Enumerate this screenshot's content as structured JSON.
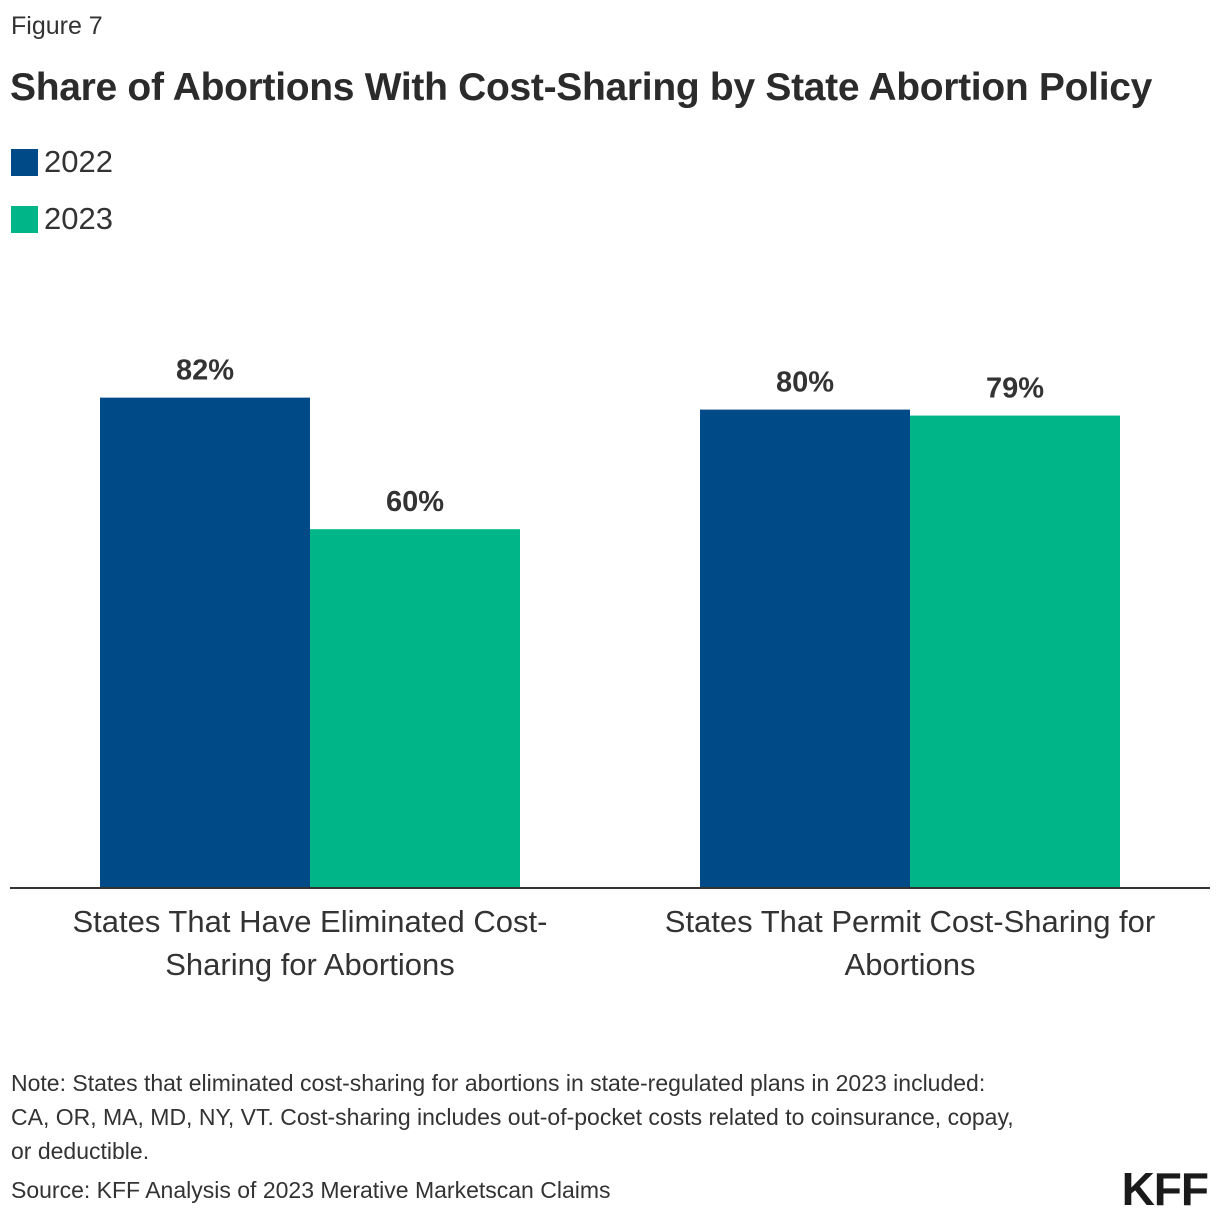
{
  "figure_label": "Figure 7",
  "logo": "KFF",
  "note": "Note: States that eliminated cost-sharing for abortions in state-regulated plans in 2023 included: CA, OR, MA, MD, NY, VT. Cost-sharing includes out-of-pocket costs related to coinsurance, copay, or deductible.",
  "source": "Source: KFF Analysis of 2023 Merative Marketscan Claims",
  "colors": {
    "series_2022": "#004b87",
    "series_2023": "#00b588",
    "axis": "#333333",
    "value_label": "#333333"
  },
  "chart_data": {
    "type": "bar",
    "title": "Share of Abortions With Cost-Sharing by State Abortion Policy",
    "categories": [
      "States That Have Eliminated Cost-Sharing for Abortions",
      "States That Permit Cost-Sharing for Abortions"
    ],
    "series": [
      {
        "name": "2022",
        "values": [
          82,
          80
        ]
      },
      {
        "name": "2023",
        "values": [
          60,
          79
        ]
      }
    ],
    "value_suffix": "%",
    "xlabel": "",
    "ylabel": "",
    "ylim": [
      0,
      100
    ],
    "grid": false,
    "legend": "top-left"
  }
}
